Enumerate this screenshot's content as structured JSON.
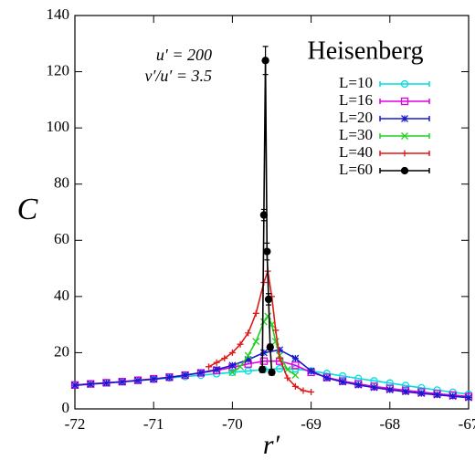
{
  "chart_data": {
    "type": "line",
    "title": "Heisenberg",
    "annotations": [
      "u′ = 200",
      "v′/u′ = 3.5"
    ],
    "x_label": "r′",
    "y_label": "C",
    "xlim": [
      -72,
      -67
    ],
    "xticks": [
      -72,
      -71,
      -70,
      -69,
      -68,
      -67
    ],
    "ylim": [
      0,
      140
    ],
    "yticks": [
      0,
      20,
      40,
      60,
      80,
      100,
      120,
      140
    ],
    "legend": "top-right",
    "series": [
      {
        "name": "L=10",
        "color": "#00dede",
        "marker": "circle",
        "x": [
          -72,
          -71.8,
          -71.6,
          -71.4,
          -71.2,
          -71,
          -70.8,
          -70.6,
          -70.4,
          -70.2,
          -70,
          -69.8,
          -69.6,
          -69.4,
          -69.2,
          -69,
          -68.8,
          -68.6,
          -68.4,
          -68.2,
          -68,
          -67.8,
          -67.6,
          -67.4,
          -67.2,
          -67
        ],
        "values": [
          8.5,
          8.9,
          9.3,
          9.7,
          10.1,
          10.5,
          11,
          11.5,
          12,
          12.5,
          13,
          13.5,
          14,
          14.3,
          14.2,
          13.5,
          12.6,
          11.7,
          10.8,
          10,
          9.2,
          8.3,
          7.5,
          6.7,
          5.9,
          5.2
        ]
      },
      {
        "name": "L=16",
        "color": "#e000e0",
        "marker": "square",
        "x": [
          -72,
          -71.8,
          -71.6,
          -71.4,
          -71.2,
          -71,
          -70.8,
          -70.6,
          -70.4,
          -70.2,
          -70,
          -69.8,
          -69.6,
          -69.4,
          -69.2,
          -69,
          -68.8,
          -68.6,
          -68.4,
          -68.2,
          -68,
          -67.8,
          -67.6,
          -67.4,
          -67.2,
          -67
        ],
        "values": [
          8.5,
          8.9,
          9.3,
          9.7,
          10.2,
          10.7,
          11.3,
          12,
          12.8,
          13.7,
          14.8,
          16,
          17,
          17,
          15.5,
          13,
          11.2,
          9.9,
          8.9,
          8,
          7.3,
          6.6,
          6,
          5.4,
          4.9,
          4.4
        ]
      },
      {
        "name": "L=20",
        "color": "#1a1acc",
        "marker": "star",
        "x": [
          -72,
          -71.8,
          -71.6,
          -71.4,
          -71.2,
          -71,
          -70.8,
          -70.6,
          -70.4,
          -70.2,
          -70,
          -69.8,
          -69.6,
          -69.4,
          -69.2,
          -69,
          -68.8,
          -68.6,
          -68.4,
          -68.2,
          -68,
          -67.8,
          -67.6,
          -67.4,
          -67.2,
          -67
        ],
        "values": [
          8.4,
          8.8,
          9.2,
          9.6,
          10.1,
          10.6,
          11.2,
          12,
          12.9,
          14,
          15.5,
          17.5,
          20,
          21,
          18,
          13.5,
          11,
          9.6,
          8.5,
          7.6,
          6.8,
          6.1,
          5.5,
          5,
          4.5,
          4
        ]
      },
      {
        "name": "L=30",
        "color": "#22d022",
        "marker": "cross",
        "x": [
          -70,
          -69.9,
          -69.8,
          -69.7,
          -69.6,
          -69.55,
          -69.5,
          -69.45,
          -69.4,
          -69.3,
          -69.2
        ],
        "values": [
          13,
          15,
          19,
          24,
          31,
          33,
          30,
          24,
          19,
          14,
          12
        ]
      },
      {
        "name": "L=40",
        "color": "#e01818",
        "marker": "plus",
        "x": [
          -70.3,
          -70.2,
          -70.1,
          -70,
          -69.9,
          -69.8,
          -69.7,
          -69.6,
          -69.55,
          -69.5,
          -69.45,
          -69.4,
          -69.3,
          -69.2,
          -69.1,
          -69
        ],
        "values": [
          15,
          16.5,
          18,
          20,
          23,
          27,
          34,
          45,
          49,
          40,
          28,
          18,
          11,
          8,
          6.5,
          6
        ]
      },
      {
        "name": "L=60",
        "color": "#000000",
        "marker": "dot",
        "x": [
          -69.62,
          -69.6,
          -69.58,
          -69.56,
          -69.54,
          -69.52,
          -69.5
        ],
        "values": [
          14,
          69,
          124,
          56,
          39,
          22,
          13
        ],
        "errors": [
          1,
          2,
          5,
          3,
          2,
          1,
          1
        ]
      }
    ]
  }
}
